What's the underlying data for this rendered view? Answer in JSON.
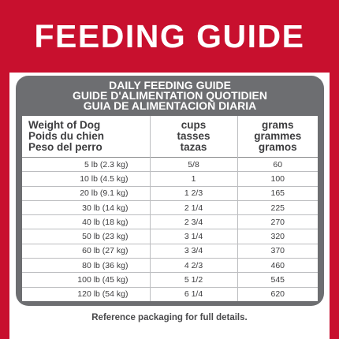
{
  "banner": {
    "title": "FEEDING GUIDE"
  },
  "table": {
    "heading": [
      "DAILY FEEDING GUIDE",
      "GUIDE D'ALIMENTATION QUOTIDIEN",
      "GUIA DE ALIMENTACION DIARIA"
    ],
    "columns": [
      [
        "Weight of Dog",
        "Poids du chien",
        "Peso del perro"
      ],
      [
        "cups",
        "tasses",
        "tazas"
      ],
      [
        "grams",
        "grammes",
        "gramos"
      ]
    ],
    "rows": [
      [
        "5 lb (2.3 kg)",
        "5/8",
        "60"
      ],
      [
        "10 lb (4.5 kg)",
        "1",
        "100"
      ],
      [
        "20 lb (9.1 kg)",
        "1 2/3",
        "165"
      ],
      [
        "30 lb (14 kg)",
        "2 1/4",
        "225"
      ],
      [
        "40 lb (18 kg)",
        "2 3/4",
        "270"
      ],
      [
        "50 lb (23 kg)",
        "3 1/4",
        "320"
      ],
      [
        "60 lb (27 kg)",
        "3 3/4",
        "370"
      ],
      [
        "80 lb (36 kg)",
        "4 2/3",
        "460"
      ],
      [
        "100 lb (45 kg)",
        "5 1/2",
        "545"
      ],
      [
        "120 lb (54 kg)",
        "6 1/4",
        "620"
      ]
    ]
  },
  "footnote": "Reference packaging for full details.",
  "colors": {
    "brand_red": "#c8102e",
    "table_gray": "#6d6e71",
    "text_dark": "#3d3d3f"
  }
}
